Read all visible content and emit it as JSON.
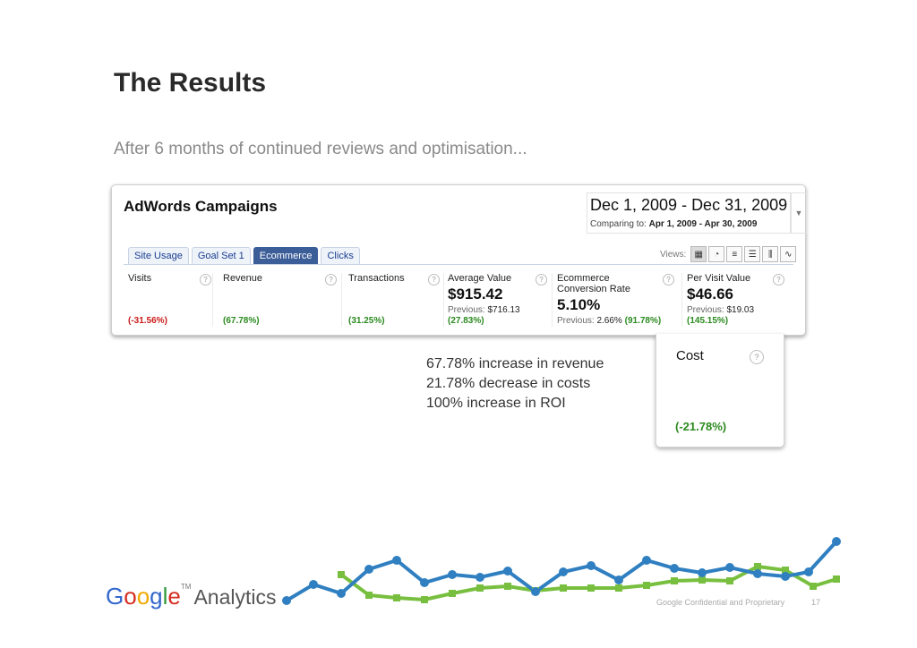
{
  "slide": {
    "title": "The Results",
    "subtitle": "After 6 months of continued reviews and optimisation..."
  },
  "panel": {
    "title": "AdWords Campaigns",
    "date_range": "Dec 1, 2009 - Dec 31, 2009",
    "comparing_label": "Comparing to:",
    "comparing_range": "Apr 1, 2009 - Apr 30, 2009",
    "tabs": [
      "Site Usage",
      "Goal Set 1",
      "Ecommerce",
      "Clicks"
    ],
    "views_label": "Views:",
    "metrics": [
      {
        "label": "Visits",
        "value": "",
        "previous": "",
        "change": "(-31.56%)",
        "change_color": "#cc1a1a"
      },
      {
        "label": "Revenue",
        "value": "",
        "previous": "",
        "change": "(67.78%)",
        "change_color": "#2b8a1f"
      },
      {
        "label": "Transactions",
        "value": "",
        "previous": "",
        "change": "(31.25%)",
        "change_color": "#2b8a1f"
      },
      {
        "label": "Average Value",
        "value": "$915.42",
        "previous_label": "Previous:",
        "previous_value": "$716.13",
        "change": "(27.83%)",
        "change_color": "#2b8a1f"
      },
      {
        "label": "Ecommerce",
        "label2": "Conversion Rate",
        "value": "5.10%",
        "previous_label": "Previous:",
        "previous_value": "2.66%",
        "change": "(91.78%)",
        "change_color": "#2b8a1f"
      },
      {
        "label": "Per Visit Value",
        "value": "$46.66",
        "previous_label": "Previous:",
        "previous_value": "$19.03",
        "change": "(145.15%)",
        "change_color": "#2b8a1f"
      }
    ]
  },
  "annotation": {
    "lines": [
      "67.78% increase in revenue",
      "21.78% decrease in costs",
      "100% increase in ROI"
    ]
  },
  "cost": {
    "label": "Cost",
    "change": "(-21.78%)",
    "change_color": "#2b8a1f"
  },
  "footer": {
    "logo": "Google",
    "logo_tm": "TM",
    "logo_suffix": "Analytics",
    "confidential": "Google Confidential and Proprietary",
    "page_number": "17"
  },
  "colors": {
    "blue_line": "#2f7fc1",
    "green_line": "#78bf3f"
  }
}
